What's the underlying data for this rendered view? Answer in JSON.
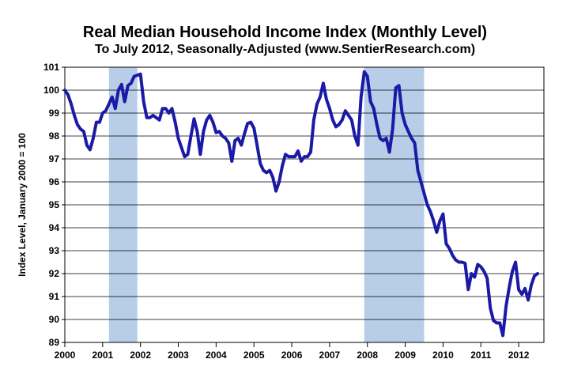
{
  "chart_data": {
    "type": "line",
    "title": "Real Median Household Income Index (Monthly Level)",
    "subtitle": "To July 2012, Seasonally-Adjusted (www.SentierResearch.com)",
    "ylabel": "Index Level, January 2000 = 100",
    "xlabel": "",
    "ylim": [
      89,
      101
    ],
    "xlim": [
      2000,
      2012.667
    ],
    "y_ticks": [
      "89",
      "90",
      "91",
      "92",
      "93",
      "94",
      "95",
      "96",
      "97",
      "98",
      "99",
      "100",
      "101"
    ],
    "x_ticks": [
      "2000",
      "2001",
      "2002",
      "2003",
      "2004",
      "2005",
      "2006",
      "2007",
      "2008",
      "2009",
      "2010",
      "2011",
      "2012"
    ],
    "grid": true,
    "series_color": "#1a1aa6",
    "recession_color": "#b7cde8",
    "recessions": [
      [
        2001.167,
        2001.917
      ],
      [
        2007.917,
        2009.5
      ]
    ],
    "series": [
      {
        "x": [
          2000.0,
          2000.083,
          2000.167,
          2000.25,
          2000.333,
          2000.417,
          2000.5,
          2000.583,
          2000.667,
          2000.75,
          2000.833,
          2000.917,
          2001.0,
          2001.083,
          2001.167,
          2001.25,
          2001.333,
          2001.417,
          2001.5,
          2001.583,
          2001.667,
          2001.75,
          2001.833,
          2001.917,
          2002.0,
          2002.083,
          2002.167,
          2002.25,
          2002.333,
          2002.417,
          2002.5,
          2002.583,
          2002.667,
          2002.75,
          2002.833,
          2002.917,
          2003.0,
          2003.083,
          2003.167,
          2003.25,
          2003.333,
          2003.417,
          2003.5,
          2003.583,
          2003.667,
          2003.75,
          2003.833,
          2003.917,
          2004.0,
          2004.083,
          2004.167,
          2004.25,
          2004.333,
          2004.417,
          2004.5,
          2004.583,
          2004.667,
          2004.75,
          2004.833,
          2004.917,
          2005.0,
          2005.083,
          2005.167,
          2005.25,
          2005.333,
          2005.417,
          2005.5,
          2005.583,
          2005.667,
          2005.75,
          2005.833,
          2005.917,
          2006.0,
          2006.083,
          2006.167,
          2006.25,
          2006.333,
          2006.417,
          2006.5,
          2006.583,
          2006.667,
          2006.75,
          2006.833,
          2006.917,
          2007.0,
          2007.083,
          2007.167,
          2007.25,
          2007.333,
          2007.417,
          2007.5,
          2007.583,
          2007.667,
          2007.75,
          2007.833,
          2007.917,
          2008.0,
          2008.083,
          2008.167,
          2008.25,
          2008.333,
          2008.417,
          2008.5,
          2008.583,
          2008.667,
          2008.75,
          2008.833,
          2008.917,
          2009.0,
          2009.083,
          2009.167,
          2009.25,
          2009.333,
          2009.417,
          2009.5,
          2009.583,
          2009.667,
          2009.75,
          2009.833,
          2009.917,
          2010.0,
          2010.083,
          2010.167,
          2010.25,
          2010.333,
          2010.417,
          2010.5,
          2010.583,
          2010.667,
          2010.75,
          2010.833,
          2010.917,
          2011.0,
          2011.083,
          2011.167,
          2011.25,
          2011.333,
          2011.417,
          2011.5,
          2011.583,
          2011.667,
          2011.75,
          2011.833,
          2011.917,
          2012.0,
          2012.083,
          2012.167,
          2012.25,
          2012.333,
          2012.417,
          2012.5
        ],
        "values": [
          100.0,
          99.8,
          99.4,
          98.9,
          98.5,
          98.3,
          98.2,
          97.6,
          97.4,
          97.9,
          98.6,
          98.6,
          99.0,
          99.1,
          99.4,
          99.7,
          99.2,
          100.0,
          100.25,
          99.5,
          100.2,
          100.3,
          100.6,
          100.65,
          100.7,
          99.5,
          98.8,
          98.8,
          98.9,
          98.8,
          98.7,
          99.2,
          99.2,
          99.0,
          99.2,
          98.6,
          97.9,
          97.5,
          97.1,
          97.2,
          98.0,
          98.75,
          98.2,
          97.2,
          98.2,
          98.7,
          98.9,
          98.6,
          98.15,
          98.2,
          98.0,
          97.9,
          97.7,
          96.9,
          97.8,
          97.9,
          97.6,
          98.1,
          98.55,
          98.6,
          98.35,
          97.6,
          96.8,
          96.5,
          96.4,
          96.5,
          96.2,
          95.6,
          96.0,
          96.7,
          97.2,
          97.1,
          97.1,
          97.1,
          97.35,
          96.9,
          97.1,
          97.1,
          97.3,
          98.7,
          99.4,
          99.7,
          100.3,
          99.6,
          99.2,
          98.7,
          98.4,
          98.5,
          98.7,
          99.1,
          98.9,
          98.7,
          98.0,
          97.6,
          99.7,
          100.8,
          100.6,
          99.5,
          99.2,
          98.5,
          97.9,
          97.8,
          97.9,
          97.3,
          98.3,
          100.1,
          100.2,
          99.0,
          98.5,
          98.2,
          97.9,
          97.7,
          96.5,
          96.0,
          95.5,
          95.0,
          94.7,
          94.3,
          93.8,
          94.3,
          94.6,
          93.3,
          93.1,
          92.8,
          92.6,
          92.5,
          92.5,
          92.45,
          91.3,
          92.0,
          91.85,
          92.4,
          92.3,
          92.1,
          91.8,
          90.5,
          89.95,
          89.85,
          89.85,
          89.3,
          90.6,
          91.4,
          92.1,
          92.5,
          91.3,
          91.1,
          91.35,
          90.85,
          91.5,
          91.9,
          92.0
        ]
      }
    ]
  }
}
